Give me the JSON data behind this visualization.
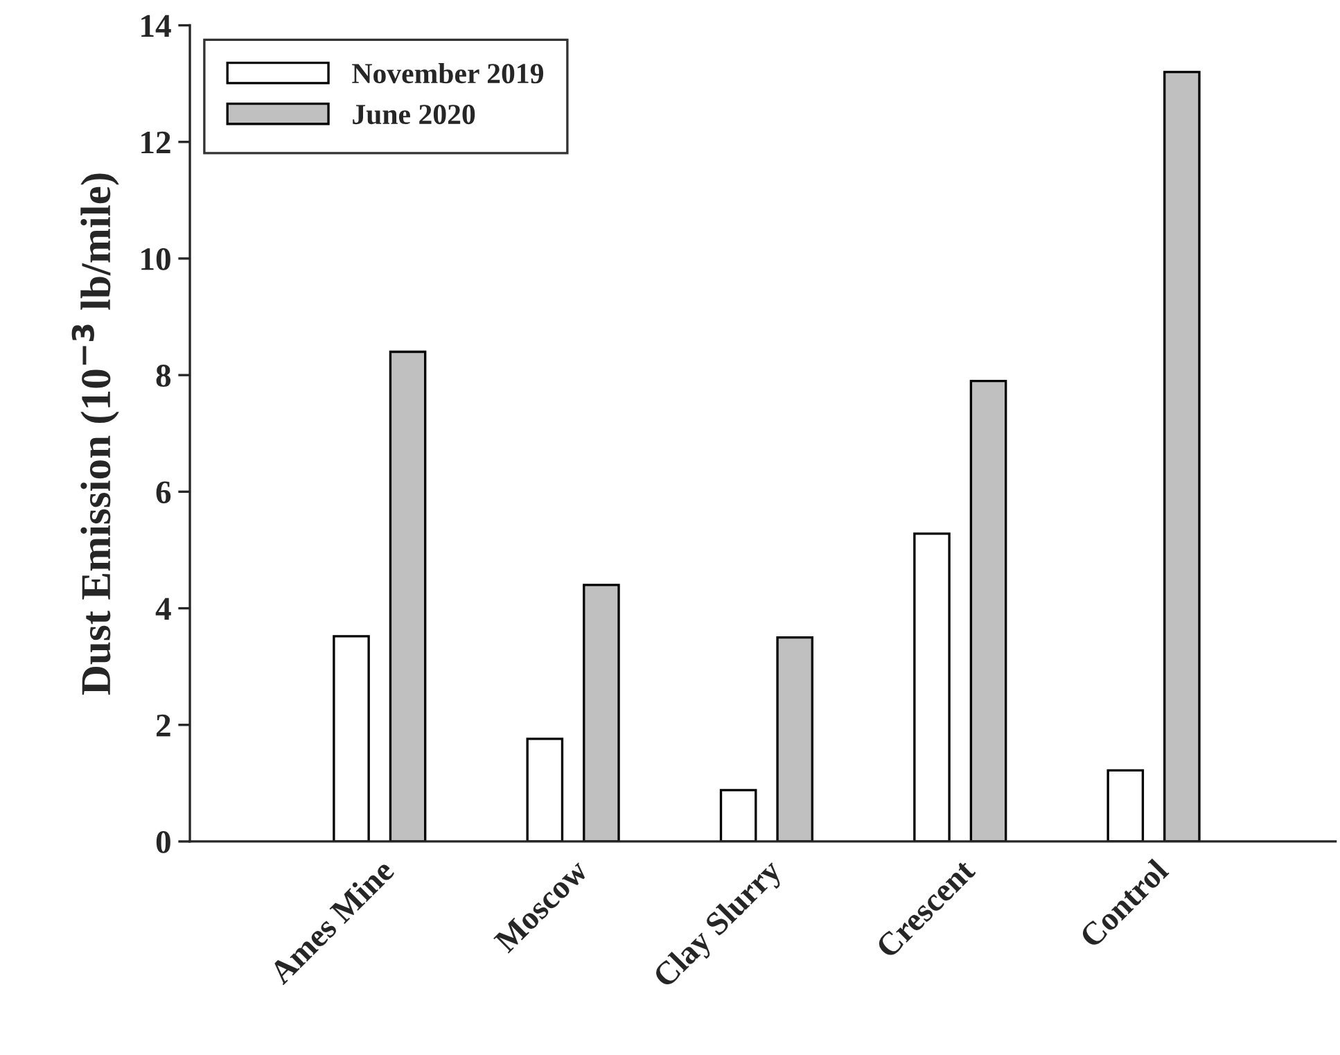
{
  "chart_data": {
    "type": "bar",
    "ylabel": "Dust Emission (10$^{−3}$ lb/mile)",
    "categories": [
      "Ames Mine",
      "Moscow",
      "Clay Slurry",
      "Crescent",
      "Control"
    ],
    "series": [
      {
        "name": "November 2019",
        "color": "#ffffff",
        "values": [
          3.52,
          1.76,
          0.88,
          5.28,
          1.22
        ]
      },
      {
        "name": "June 2020",
        "color": "#c0c0c0",
        "values": [
          8.4,
          4.4,
          3.5,
          7.9,
          13.2
        ]
      }
    ],
    "ylim": [
      0,
      14
    ],
    "yticks": [
      0,
      2,
      4,
      6,
      8,
      10,
      12,
      14
    ],
    "grid": false,
    "legend": "top left"
  }
}
